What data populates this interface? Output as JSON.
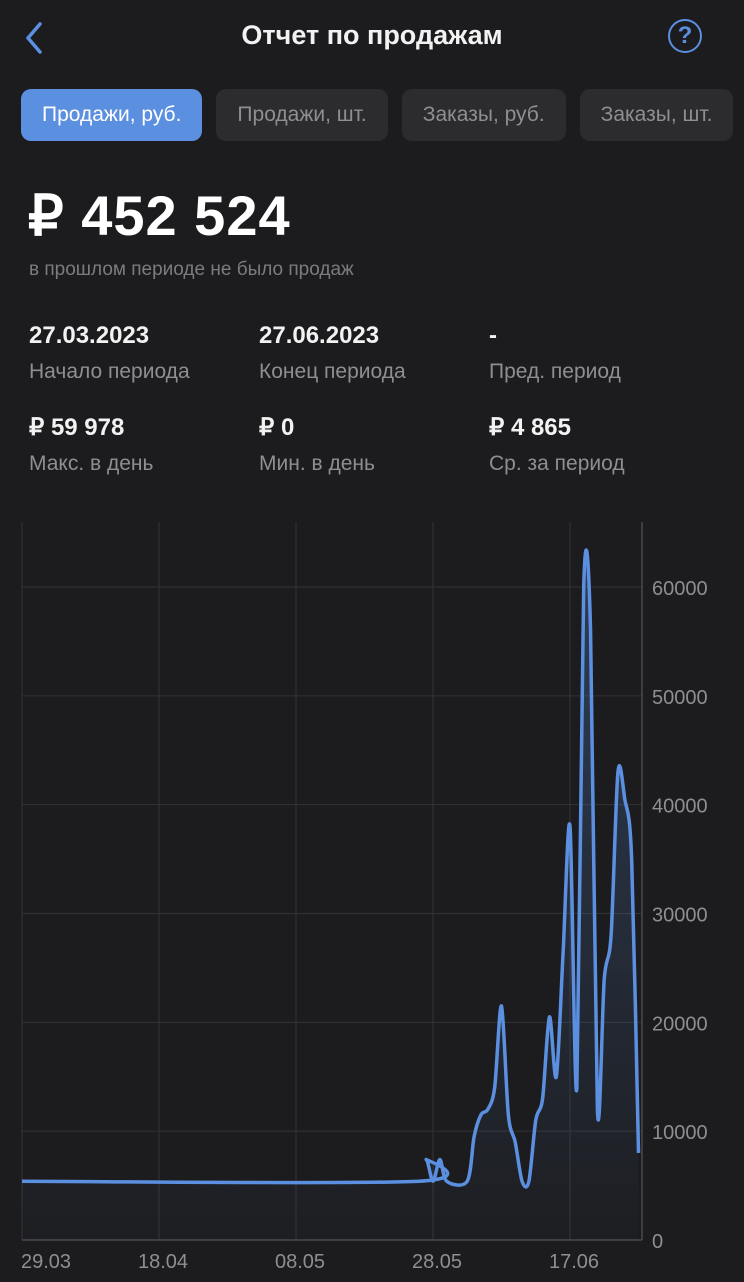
{
  "header": {
    "title": "Отчет по продажам",
    "back_icon": "chevron-left-icon",
    "help_icon": "question-circle-icon",
    "accent": "#5b8fe0"
  },
  "tabs": [
    {
      "label": "Продажи, руб.",
      "active": true
    },
    {
      "label": "Продажи, шт.",
      "active": false
    },
    {
      "label": "Заказы, руб.",
      "active": false
    },
    {
      "label": "Заказы, шт.",
      "active": false
    }
  ],
  "summary": {
    "total": "₽ 452 524",
    "note": "в прошлом периоде не было продаж"
  },
  "stats": [
    {
      "value": "27.03.2023",
      "label": "Начало периода"
    },
    {
      "value": "27.06.2023",
      "label": "Конец периода"
    },
    {
      "value": "-",
      "label": "Пред. период"
    },
    {
      "value": "₽ 59 978",
      "label": "Макс. в день"
    },
    {
      "value": "₽ 0",
      "label": "Мин. в день"
    },
    {
      "value": "₽ 4 865",
      "label": "Ср. за период"
    }
  ],
  "chart_data": {
    "type": "line",
    "x_ticks": [
      "29.03",
      "18.04",
      "08.05",
      "28.05",
      "17.06"
    ],
    "y_ticks": [
      0,
      10000,
      20000,
      30000,
      40000,
      50000,
      60000
    ],
    "ylim": [
      0,
      64000
    ],
    "grid": true,
    "y_axis_position": "right",
    "line_color": "#5b8fe0",
    "points": [
      [
        "29.03",
        5400
      ],
      [
        "26.05",
        5400
      ],
      [
        "27.05",
        7400
      ],
      [
        "28.05",
        5400
      ],
      [
        "29.05",
        7400
      ],
      [
        "30.05",
        5400
      ],
      [
        "02.06",
        5400
      ],
      [
        "03.06",
        9500
      ],
      [
        "04.06",
        11500
      ],
      [
        "05.06",
        12000
      ],
      [
        "06.06",
        14000
      ],
      [
        "07.06",
        21500
      ],
      [
        "08.06",
        11500
      ],
      [
        "09.06",
        9000
      ],
      [
        "10.06",
        5400
      ],
      [
        "11.06",
        5400
      ],
      [
        "12.06",
        11000
      ],
      [
        "13.06",
        13000
      ],
      [
        "14.06",
        20500
      ],
      [
        "15.06",
        15000
      ],
      [
        "16.06",
        26500
      ],
      [
        "17.06",
        38000
      ],
      [
        "18.06",
        14000
      ],
      [
        "19.06",
        60000
      ],
      [
        "20.06",
        56000
      ],
      [
        "21.06",
        12000
      ],
      [
        "22.06",
        24000
      ],
      [
        "23.06",
        28000
      ],
      [
        "24.06",
        43000
      ],
      [
        "25.06",
        40500
      ],
      [
        "26.06",
        35000
      ],
      [
        "27.06",
        8000
      ]
    ]
  }
}
